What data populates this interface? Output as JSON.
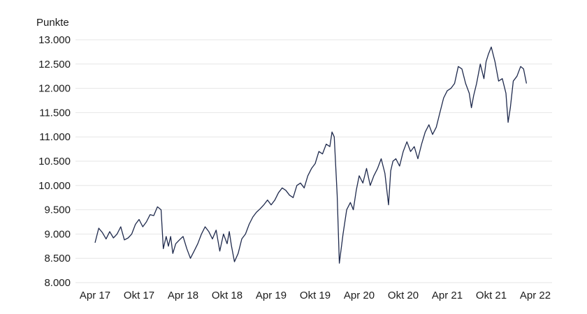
{
  "chart_data": {
    "type": "line",
    "title": "",
    "ylabel": "Punkte",
    "xlabel": "",
    "ylim": [
      8000,
      13000
    ],
    "yticks": [
      8000,
      8500,
      9000,
      9500,
      10000,
      10500,
      11000,
      11500,
      12000,
      12500,
      13000
    ],
    "ytick_labels": [
      "8.000",
      "8.500",
      "9.000",
      "9.500",
      "10.000",
      "10.500",
      "11.000",
      "11.500",
      "12.000",
      "12.500",
      "13.000"
    ],
    "xlim": [
      0,
      60
    ],
    "xticks": [
      0,
      6,
      12,
      18,
      24,
      30,
      36,
      42,
      48,
      54,
      60
    ],
    "xtick_labels": [
      "Apr 17",
      "Okt 17",
      "Apr 18",
      "Okt 18",
      "Apr 19",
      "Okt 19",
      "Apr 20",
      "Okt 20",
      "Apr 21",
      "Okt 21",
      "Apr 22"
    ],
    "grid": true,
    "series_color": "#1f2a4d",
    "series": [
      {
        "values": [
          [
            0,
            8820
          ],
          [
            0.5,
            9120
          ],
          [
            1,
            9030
          ],
          [
            1.5,
            8900
          ],
          [
            2,
            9050
          ],
          [
            2.5,
            8920
          ],
          [
            3,
            9000
          ],
          [
            3.5,
            9150
          ],
          [
            4,
            8880
          ],
          [
            4.5,
            8920
          ],
          [
            5,
            9000
          ],
          [
            5.5,
            9200
          ],
          [
            6,
            9300
          ],
          [
            6.5,
            9150
          ],
          [
            7,
            9250
          ],
          [
            7.5,
            9400
          ],
          [
            8,
            9380
          ],
          [
            8.5,
            9560
          ],
          [
            9,
            9500
          ],
          [
            9.3,
            8700
          ],
          [
            9.7,
            8950
          ],
          [
            10,
            8750
          ],
          [
            10.3,
            8950
          ],
          [
            10.6,
            8600
          ],
          [
            11,
            8800
          ],
          [
            11.5,
            8880
          ],
          [
            12,
            8950
          ],
          [
            12.5,
            8700
          ],
          [
            13,
            8500
          ],
          [
            13.5,
            8650
          ],
          [
            14,
            8800
          ],
          [
            14.5,
            9000
          ],
          [
            15,
            9150
          ],
          [
            15.5,
            9050
          ],
          [
            16,
            8900
          ],
          [
            16.5,
            9080
          ],
          [
            17,
            8650
          ],
          [
            17.5,
            9000
          ],
          [
            18,
            8800
          ],
          [
            18.3,
            9050
          ],
          [
            18.6,
            8750
          ],
          [
            19,
            8430
          ],
          [
            19.5,
            8600
          ],
          [
            20,
            8900
          ],
          [
            20.5,
            9000
          ],
          [
            21,
            9200
          ],
          [
            21.5,
            9350
          ],
          [
            22,
            9450
          ],
          [
            22.5,
            9520
          ],
          [
            23,
            9600
          ],
          [
            23.5,
            9700
          ],
          [
            24,
            9600
          ],
          [
            24.5,
            9700
          ],
          [
            25,
            9850
          ],
          [
            25.5,
            9950
          ],
          [
            26,
            9900
          ],
          [
            26.5,
            9800
          ],
          [
            27,
            9750
          ],
          [
            27.5,
            10000
          ],
          [
            28,
            10050
          ],
          [
            28.5,
            9950
          ],
          [
            29,
            10200
          ],
          [
            29.5,
            10350
          ],
          [
            30,
            10450
          ],
          [
            30.5,
            10700
          ],
          [
            31,
            10650
          ],
          [
            31.5,
            10850
          ],
          [
            32,
            10800
          ],
          [
            32.3,
            11100
          ],
          [
            32.6,
            11000
          ],
          [
            33,
            9800
          ],
          [
            33.3,
            8400
          ],
          [
            33.8,
            9000
          ],
          [
            34.3,
            9500
          ],
          [
            34.8,
            9650
          ],
          [
            35.2,
            9500
          ],
          [
            35.6,
            9900
          ],
          [
            36,
            10200
          ],
          [
            36.5,
            10050
          ],
          [
            37,
            10350
          ],
          [
            37.5,
            10000
          ],
          [
            38,
            10200
          ],
          [
            38.5,
            10350
          ],
          [
            39,
            10550
          ],
          [
            39.5,
            10250
          ],
          [
            40,
            9600
          ],
          [
            40.3,
            10300
          ],
          [
            40.6,
            10500
          ],
          [
            41,
            10550
          ],
          [
            41.5,
            10400
          ],
          [
            42,
            10700
          ],
          [
            42.5,
            10900
          ],
          [
            43,
            10700
          ],
          [
            43.5,
            10800
          ],
          [
            44,
            10550
          ],
          [
            44.5,
            10850
          ],
          [
            45,
            11100
          ],
          [
            45.5,
            11250
          ],
          [
            46,
            11050
          ],
          [
            46.5,
            11200
          ],
          [
            47,
            11500
          ],
          [
            47.5,
            11800
          ],
          [
            48,
            11950
          ],
          [
            48.5,
            12000
          ],
          [
            49,
            12100
          ],
          [
            49.5,
            12450
          ],
          [
            50,
            12400
          ],
          [
            50.5,
            12100
          ],
          [
            51,
            11900
          ],
          [
            51.3,
            11600
          ],
          [
            51.6,
            11850
          ],
          [
            52,
            12100
          ],
          [
            52.5,
            12500
          ],
          [
            53,
            12200
          ],
          [
            53.3,
            12550
          ],
          [
            53.6,
            12700
          ],
          [
            54,
            12850
          ],
          [
            54.5,
            12550
          ],
          [
            55,
            12150
          ],
          [
            55.5,
            12200
          ],
          [
            56,
            11900
          ],
          [
            56.3,
            11300
          ],
          [
            56.6,
            11600
          ],
          [
            57,
            12150
          ],
          [
            57.5,
            12250
          ],
          [
            58,
            12450
          ],
          [
            58.4,
            12400
          ],
          [
            58.8,
            12100
          ]
        ]
      }
    ]
  }
}
